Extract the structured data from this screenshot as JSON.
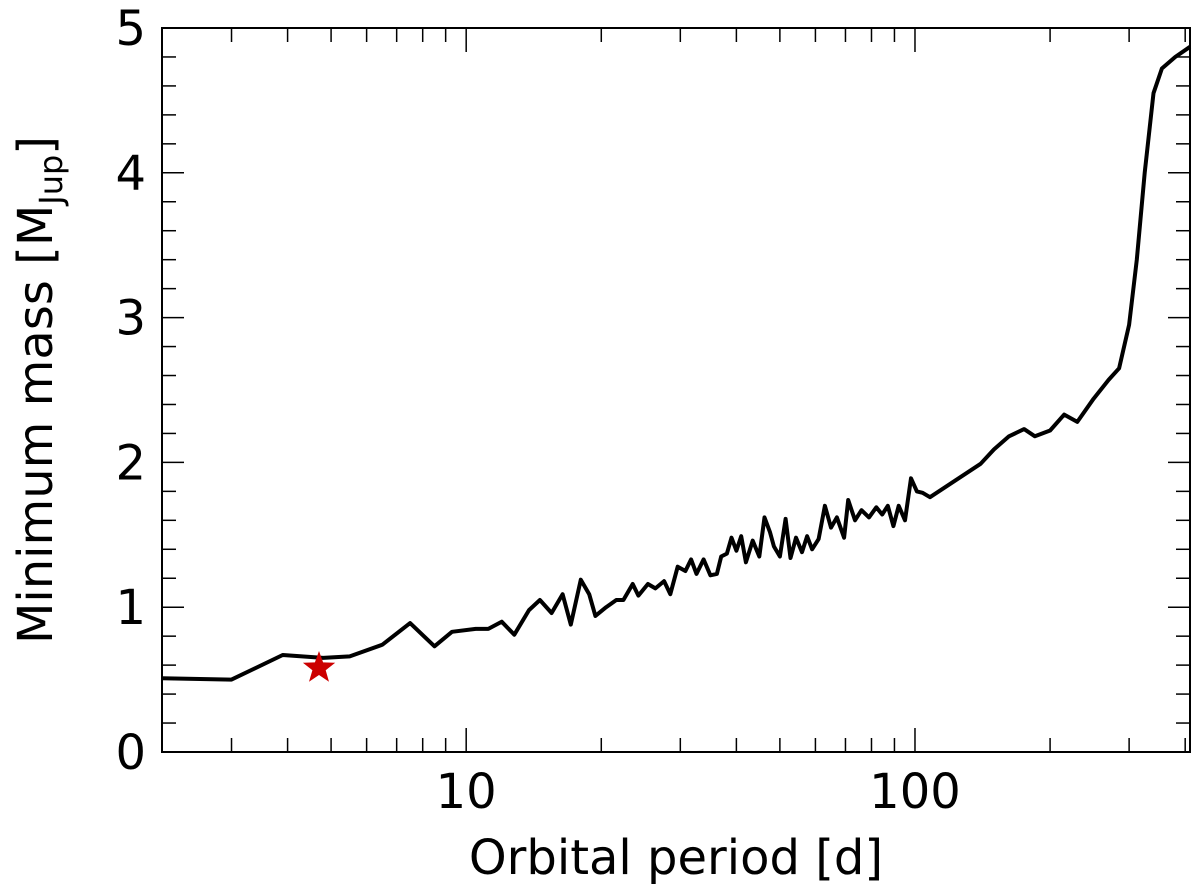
{
  "chart_data": {
    "type": "line",
    "xlabel": "Orbital period [d]",
    "ylabel_main": "Minimum mass [M",
    "ylabel_sub": "Jup",
    "ylabel_close": "]",
    "x_scale": "log",
    "xlim": [
      2.1,
      410
    ],
    "ylim": [
      0,
      5
    ],
    "x_ticks": [
      10,
      100
    ],
    "x_tick_labels": [
      "10",
      "100"
    ],
    "y_ticks": [
      0,
      1,
      2,
      3,
      4,
      5
    ],
    "y_tick_labels": [
      "0",
      "1",
      "2",
      "3",
      "4",
      "5"
    ],
    "grid": false,
    "series": [
      {
        "color": "#000000",
        "points": [
          [
            2.1,
            0.51
          ],
          [
            3.0,
            0.5
          ],
          [
            3.9,
            0.67
          ],
          [
            4.8,
            0.65
          ],
          [
            5.5,
            0.66
          ],
          [
            6.5,
            0.74
          ],
          [
            7.5,
            0.89
          ],
          [
            8.5,
            0.73
          ],
          [
            9.3,
            0.83
          ],
          [
            10.5,
            0.85
          ],
          [
            11.2,
            0.85
          ],
          [
            12.0,
            0.9
          ],
          [
            12.8,
            0.81
          ],
          [
            13.8,
            0.98
          ],
          [
            14.6,
            1.05
          ],
          [
            15.5,
            0.96
          ],
          [
            16.4,
            1.09
          ],
          [
            17.1,
            0.88
          ],
          [
            18.0,
            1.19
          ],
          [
            18.8,
            1.09
          ],
          [
            19.4,
            0.94
          ],
          [
            20.5,
            1.0
          ],
          [
            21.6,
            1.05
          ],
          [
            22.4,
            1.05
          ],
          [
            23.5,
            1.16
          ],
          [
            24.2,
            1.08
          ],
          [
            25.4,
            1.16
          ],
          [
            26.4,
            1.13
          ],
          [
            27.6,
            1.18
          ],
          [
            28.5,
            1.09
          ],
          [
            29.6,
            1.28
          ],
          [
            30.8,
            1.25
          ],
          [
            31.7,
            1.33
          ],
          [
            32.6,
            1.23
          ],
          [
            33.8,
            1.33
          ],
          [
            35.0,
            1.22
          ],
          [
            36.2,
            1.23
          ],
          [
            37.0,
            1.35
          ],
          [
            38.1,
            1.37
          ],
          [
            39.0,
            1.48
          ],
          [
            40.0,
            1.39
          ],
          [
            41.0,
            1.49
          ],
          [
            42.0,
            1.31
          ],
          [
            43.5,
            1.46
          ],
          [
            45.0,
            1.35
          ],
          [
            46.2,
            1.62
          ],
          [
            47.5,
            1.52
          ],
          [
            48.5,
            1.42
          ],
          [
            50.0,
            1.35
          ],
          [
            51.5,
            1.61
          ],
          [
            52.8,
            1.34
          ],
          [
            54.3,
            1.48
          ],
          [
            56.0,
            1.38
          ],
          [
            57.5,
            1.49
          ],
          [
            59.0,
            1.4
          ],
          [
            61.0,
            1.47
          ],
          [
            63.0,
            1.7
          ],
          [
            65.0,
            1.55
          ],
          [
            67.0,
            1.62
          ],
          [
            69.5,
            1.48
          ],
          [
            71.0,
            1.74
          ],
          [
            73.5,
            1.6
          ],
          [
            76.0,
            1.67
          ],
          [
            79.0,
            1.62
          ],
          [
            82.0,
            1.69
          ],
          [
            84.5,
            1.64
          ],
          [
            87.0,
            1.7
          ],
          [
            89.5,
            1.56
          ],
          [
            92.0,
            1.7
          ],
          [
            95.0,
            1.6
          ],
          [
            98.0,
            1.89
          ],
          [
            101.0,
            1.8
          ],
          [
            104.0,
            1.79
          ],
          [
            108.0,
            1.76
          ],
          [
            140.0,
            1.99
          ],
          [
            150.0,
            2.09
          ],
          [
            162.0,
            2.18
          ],
          [
            175.0,
            2.23
          ],
          [
            185.0,
            2.18
          ],
          [
            200.0,
            2.22
          ],
          [
            215.0,
            2.33
          ],
          [
            230.0,
            2.28
          ],
          [
            250.0,
            2.44
          ],
          [
            270.0,
            2.57
          ],
          [
            285.0,
            2.65
          ],
          [
            300.0,
            2.95
          ],
          [
            312.0,
            3.4
          ],
          [
            325.0,
            4.0
          ],
          [
            340.0,
            4.55
          ],
          [
            355.0,
            4.72
          ],
          [
            380.0,
            4.8
          ],
          [
            410.0,
            4.87
          ]
        ]
      }
    ],
    "marker": {
      "x": 4.7,
      "y": 0.58,
      "shape": "star",
      "color": "#cc0000"
    }
  }
}
